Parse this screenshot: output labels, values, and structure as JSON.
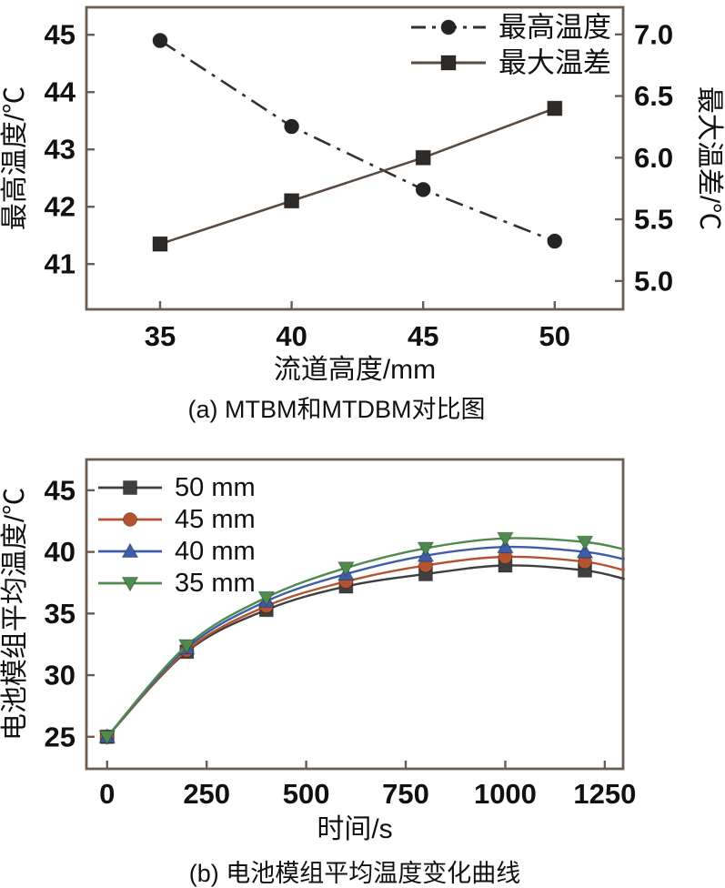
{
  "captions": {
    "a": "(a) MTBM和MTDBM对比图",
    "b": "(b) 电池模组平均温度变化曲线"
  },
  "colors": {
    "axis": "#6b5d52",
    "text": "#111111",
    "background": "#ffffff"
  },
  "chart_data": [
    {
      "id": "a",
      "type": "line",
      "title": "(a) MTBM和MTDBM对比图",
      "xlabel": "流道高度/mm",
      "ylabel": "最高温度/℃",
      "y2label": "最大温差/℃",
      "xlim": [
        32.2,
        52.6
      ],
      "ylim": [
        40.21,
        45.48
      ],
      "y2lim": [
        4.77,
        7.22
      ],
      "xticks": [
        "35",
        "40",
        "45",
        "50"
      ],
      "yticks": [
        "41",
        "42",
        "43",
        "44",
        "45"
      ],
      "y2ticks": [
        "5.0",
        "5.5",
        "6.0",
        "6.5",
        "7.0"
      ],
      "grid": false,
      "legend_position": "top-right",
      "series": [
        {
          "name": "最高温度",
          "axis": "left",
          "color": "#34312e",
          "marker_color": "#262422",
          "line": "dashdot",
          "marker": "circle",
          "x": [
            35,
            40,
            45,
            50
          ],
          "y": [
            44.9,
            43.4,
            42.3,
            41.4
          ]
        },
        {
          "name": "最大温差",
          "axis": "right",
          "color": "#5a4a40",
          "marker_color": "#2e2a27",
          "line": "solid",
          "marker": "square",
          "x": [
            35,
            40,
            45,
            50
          ],
          "y": [
            5.3,
            5.65,
            6.0,
            6.4
          ]
        }
      ]
    },
    {
      "id": "b",
      "type": "line",
      "title": "(b) 电池模组平均温度变化曲线",
      "xlabel": "时间/s",
      "ylabel": "电池模组平均温度/℃",
      "xlim": [
        -52,
        1296
      ],
      "ylim": [
        22.4,
        47.5
      ],
      "xticks": [
        "0",
        "250",
        "500",
        "750",
        "1000",
        "1250"
      ],
      "yticks": [
        "25",
        "30",
        "35",
        "40",
        "45"
      ],
      "grid": false,
      "legend_position": "top-left",
      "series": [
        {
          "name": "50 mm",
          "axis": "left",
          "color": "#3f3f3f",
          "line": "solid",
          "marker": "square",
          "marker_count": 7,
          "x": [
            0,
            200,
            400,
            600,
            800,
            1000,
            1200,
            1300
          ],
          "y": [
            25.0,
            31.9,
            35.3,
            37.2,
            38.2,
            38.9,
            38.5,
            37.8
          ]
        },
        {
          "name": "45 mm",
          "axis": "left",
          "color": "#b4532f",
          "line": "solid",
          "marker": "circle",
          "marker_count": 7,
          "x": [
            0,
            200,
            400,
            600,
            800,
            1000,
            1200,
            1300
          ],
          "y": [
            25.0,
            32.0,
            35.6,
            37.6,
            38.9,
            39.6,
            39.2,
            38.5
          ]
        },
        {
          "name": "40 mm",
          "axis": "left",
          "color": "#3c5da8",
          "line": "solid",
          "marker": "triangle-up",
          "marker_count": 7,
          "x": [
            0,
            200,
            400,
            600,
            800,
            1000,
            1200,
            1300
          ],
          "y": [
            25.0,
            32.2,
            36.0,
            38.2,
            39.7,
            40.4,
            40.0,
            39.4
          ]
        },
        {
          "name": "35 mm",
          "axis": "left",
          "color": "#4f8a4f",
          "line": "solid",
          "marker": "triangle-down",
          "marker_count": 7,
          "x": [
            0,
            200,
            400,
            600,
            800,
            1000,
            1200,
            1300
          ],
          "y": [
            25.0,
            32.4,
            36.3,
            38.7,
            40.3,
            41.1,
            40.8,
            40.2
          ]
        }
      ]
    }
  ]
}
